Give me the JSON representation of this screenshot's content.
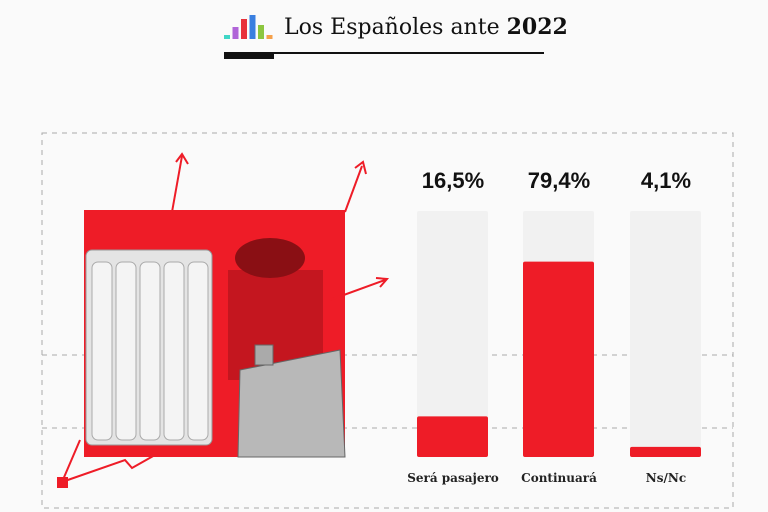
{
  "header": {
    "title_prefix": "Los Españoles ante",
    "title_year": "2022",
    "logo_colors": [
      "#3fd6c6",
      "#b064d8",
      "#e8303a",
      "#3a7fe0",
      "#8cc63f",
      "#f5a04a"
    ]
  },
  "colors": {
    "accent": "#ee1c27",
    "track": "#f1f1f1"
  },
  "chart_data": {
    "type": "bar",
    "title": "Los Españoles ante 2022",
    "categories": [
      "Será pasajero",
      "Continuará",
      "Ns/Nc"
    ],
    "values": [
      16.5,
      79.4,
      4.1
    ],
    "labels": [
      "16,5%",
      "79,4%",
      "4,1%"
    ],
    "ylim": [
      0,
      100
    ],
    "xlabel": "",
    "ylabel": ""
  }
}
